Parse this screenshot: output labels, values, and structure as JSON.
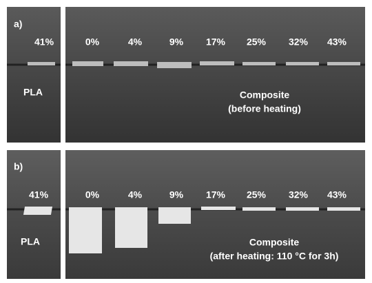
{
  "panels": [
    {
      "label": "a)",
      "pla_label": "PLA",
      "pla_percent": "41%",
      "percents": [
        "0%",
        "4%",
        "9%",
        "17%",
        "25%",
        "32%",
        "43%"
      ],
      "composite_label": "Composite",
      "condition": "(before heating)"
    },
    {
      "label": "b)",
      "pla_label": "PLA",
      "pla_percent": "41%",
      "percents": [
        "0%",
        "4%",
        "9%",
        "17%",
        "25%",
        "32%",
        "43%"
      ],
      "composite_label": "Composite",
      "condition": "(after heating: 110 °C for 3h)"
    }
  ]
}
